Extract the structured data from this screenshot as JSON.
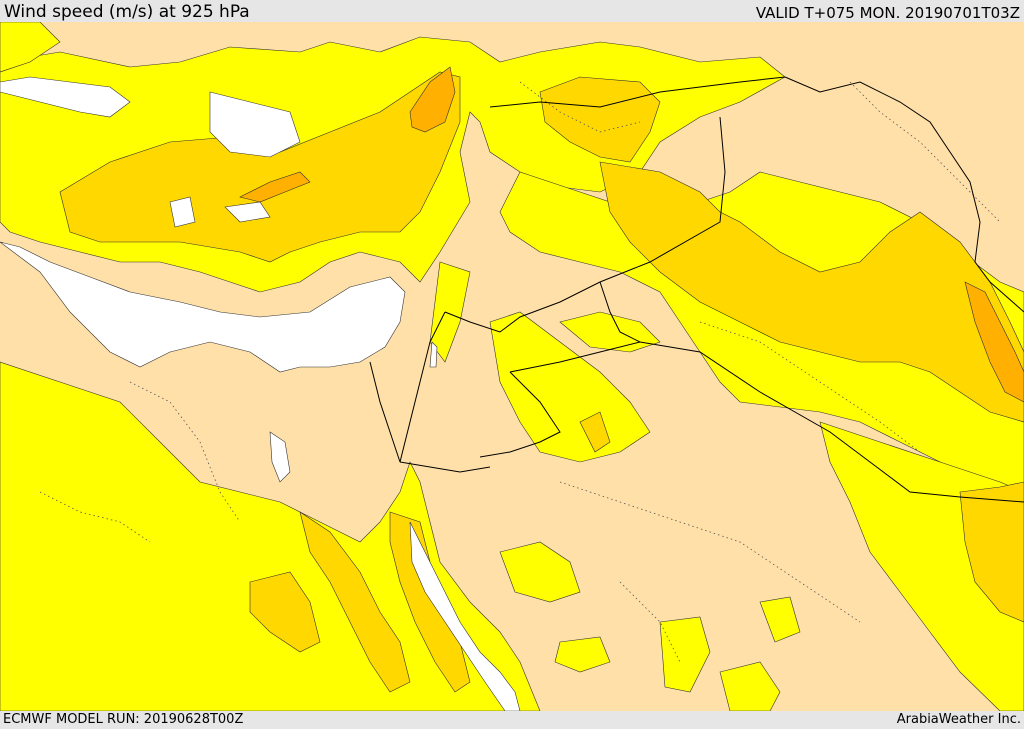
{
  "header": {
    "title": "Wind speed (m/s) at 925 hPa",
    "valid_time": "VALID T+075 MON. 20190701T03Z"
  },
  "footer": {
    "model_run": "ECMWF MODEL RUN: 20190628T00Z",
    "credit": "ArabiaWeather Inc."
  },
  "colors": {
    "land_calm": "#ffe0a8",
    "wind_low": "#ffff00",
    "wind_mid": "#ffd800",
    "wind_high": "#ffb000",
    "sea_mask": "#ffffff",
    "border": "#000000"
  }
}
